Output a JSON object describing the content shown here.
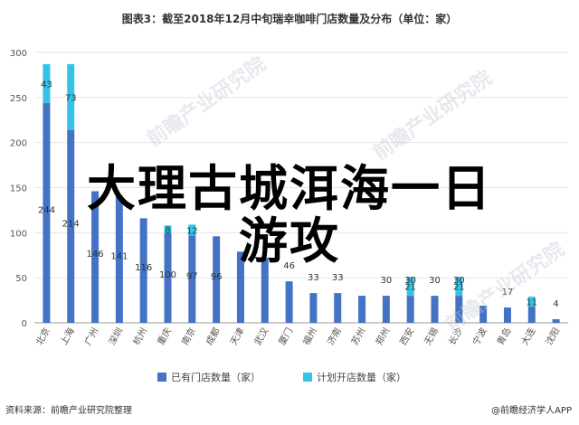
{
  "title": "图表3：截至2018年12月中旬瑞幸咖啡门店数量及分布（单位：家）",
  "overlay": {
    "line1": "大理古城洱海一日",
    "line2": "游攻"
  },
  "source": "资料来源：前瞻产业研究院整理",
  "brand": "@前瞻经济学人APP",
  "watermark": "前瞻产业研究院",
  "colors": {
    "opened": "#4472C4",
    "planned": "#33C3E8",
    "grid": "#E6E6E6",
    "axis": "#999999"
  },
  "chart_data": {
    "type": "bar",
    "stacked": true,
    "categories": [
      "北京",
      "上海",
      "广州",
      "深圳",
      "杭州",
      "重庆",
      "南京",
      "成都",
      "天津",
      "武汉",
      "厦门",
      "福州",
      "济南",
      "苏州",
      "郑州",
      "西安",
      "无锡",
      "长沙",
      "宁波",
      "青岛",
      "大连",
      "沈阳"
    ],
    "series": [
      {
        "name": "已有门店数量（家）",
        "values": [
          244,
          214,
          146,
          141,
          116,
          100,
          97,
          96,
          79,
          72,
          46,
          33,
          33,
          30,
          30,
          30,
          30,
          30,
          19,
          17,
          18,
          4
        ],
        "labels": [
          "244",
          "214",
          "146",
          "141",
          "116",
          "100",
          "97",
          "96",
          "",
          "",
          "46",
          "33",
          "33",
          "",
          "30",
          "30",
          "30",
          "30",
          "",
          "17",
          "",
          "4"
        ]
      },
      {
        "name": "计划开店数量（家）",
        "values": [
          43,
          73,
          0,
          0,
          0,
          8,
          12,
          0,
          0,
          0,
          0,
          0,
          0,
          0,
          0,
          21,
          0,
          21,
          0,
          0,
          11,
          0
        ],
        "labels": [
          "43",
          "73",
          "",
          "",
          "",
          "8",
          "12",
          "",
          "",
          "",
          "",
          "",
          "",
          "",
          "",
          "21",
          "",
          "21",
          "",
          "",
          "11",
          ""
        ]
      }
    ],
    "ylim": [
      0,
      300
    ],
    "yticks": [
      0,
      50,
      100,
      150,
      200,
      250,
      300
    ],
    "xlabel": "",
    "ylabel": "",
    "grid": true,
    "legend_position": "bottom"
  }
}
